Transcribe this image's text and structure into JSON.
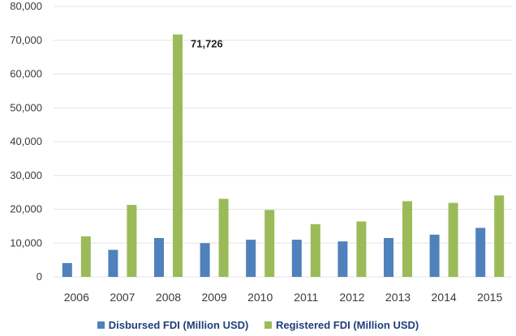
{
  "chart_data": {
    "type": "bar",
    "title": "",
    "xlabel": "",
    "ylabel": "",
    "categories": [
      "2006",
      "2007",
      "2008",
      "2009",
      "2010",
      "2011",
      "2012",
      "2013",
      "2014",
      "2015"
    ],
    "series": [
      {
        "name": "Disbursed FDI (Million USD)",
        "color": "#4f81bd",
        "values": [
          4100,
          8000,
          11500,
          10000,
          11000,
          11000,
          10500,
          11500,
          12500,
          14500
        ]
      },
      {
        "name": "Registered FDI (Million USD)",
        "color": "#9bbb59",
        "values": [
          12000,
          21300,
          71726,
          23100,
          19800,
          15600,
          16400,
          22400,
          21900,
          24100
        ]
      }
    ],
    "ylim": [
      0,
      80000
    ],
    "yticks": [
      0,
      10000,
      20000,
      30000,
      40000,
      50000,
      60000,
      70000,
      80000
    ],
    "ytick_labels": [
      "0",
      "10,000",
      "20,000",
      "30,000",
      "40,000",
      "50,000",
      "60,000",
      "70,000",
      "80,000"
    ],
    "annotations": [
      {
        "text": "71,726",
        "category": "2008",
        "value": 71726
      }
    ],
    "grid": true,
    "legend_position": "bottom"
  }
}
